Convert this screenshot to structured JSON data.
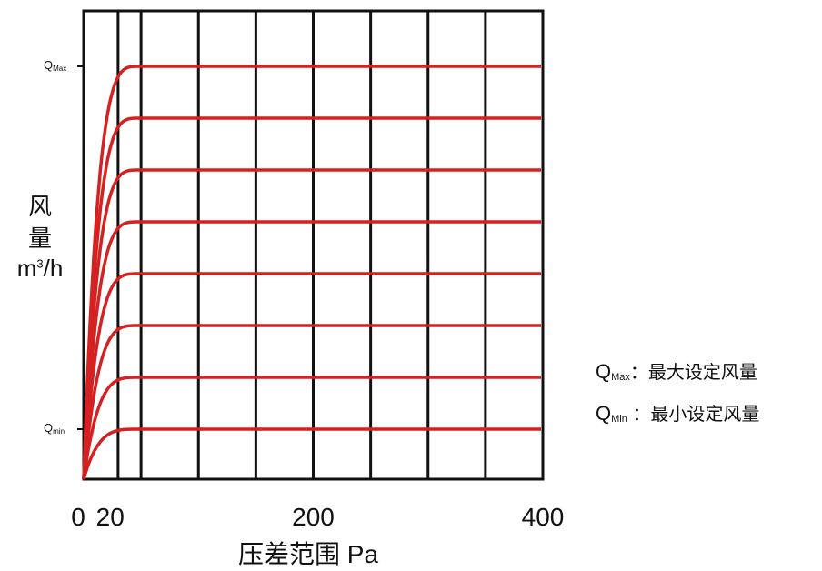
{
  "chart_data": {
    "type": "line",
    "xlabel_cn": "压差范围",
    "xlabel_unit": "Pa",
    "ylabel": {
      "line1": "风",
      "line2": "量",
      "unit_base": "m",
      "unit_exp": "3",
      "unit_tail": "/h"
    },
    "x_ticks": [
      {
        "label": "0",
        "value": 0
      },
      {
        "label": "20",
        "value": 20
      },
      {
        "label": "200",
        "value": 200
      },
      {
        "label": "400",
        "value": 400
      }
    ],
    "xlim": [
      0,
      400
    ],
    "gridlines_x": [
      0,
      30,
      50,
      100,
      150,
      200,
      250,
      300,
      350,
      400
    ],
    "y_ticks": [
      {
        "label_main": "Q",
        "label_sub": "Max",
        "level": 8
      },
      {
        "label_main": "Q",
        "label_sub": "min",
        "level": 1
      }
    ],
    "levels": [
      1,
      2,
      3,
      4,
      5,
      6,
      7,
      8
    ],
    "curve_saturation_x": 50,
    "line_color": "#d42121",
    "grid_color": "#111111",
    "grid": true
  },
  "legend": {
    "max": {
      "q": "Q",
      "sub": "Max",
      "text": "：最大设定风量"
    },
    "min": {
      "q": "Q",
      "sub": "Min",
      "text": " ：最小设定风量"
    }
  }
}
